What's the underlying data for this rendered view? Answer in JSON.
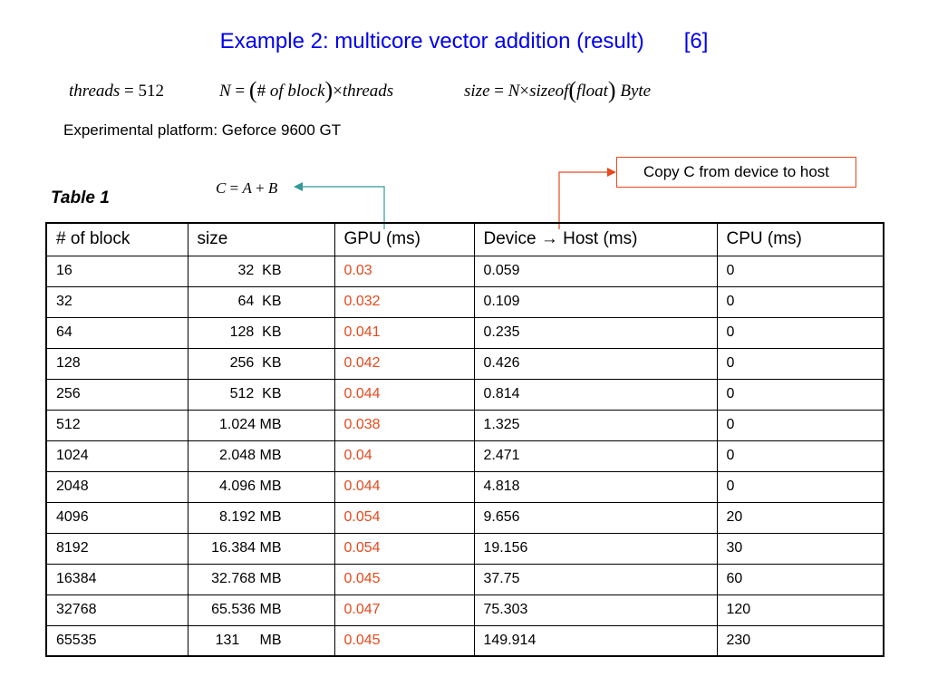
{
  "slide": {
    "title": "Example 2: multicore vector addition (result)",
    "ref": "[6]",
    "formula_threads": {
      "lhs": "threads",
      "eq": " = ",
      "rhs": "512"
    },
    "formula_N": {
      "lhs": "N",
      "eq": " = ",
      "open": "(",
      "hash": "#",
      "of": " of ",
      "block": " block",
      "close": ")",
      "times": "×",
      "threads": "threads"
    },
    "formula_size": {
      "lhs": "size",
      "eq": " = ",
      "N": "N",
      "times": "×",
      "sizeof": "sizeof",
      "open": "(",
      "float": "float",
      "close": ")",
      "byte": " Byte"
    },
    "platform": "Experimental platform: Geforce 9600 GT",
    "cab": {
      "C": "C",
      "eq": " = ",
      "A": "A",
      "plus": " + ",
      "B": "B"
    },
    "callout": "Copy C from device to host",
    "table_label": "Table 1",
    "colors": {
      "title": "#0000ee",
      "gpu_values": "#e8491d",
      "callout_border": "#e8491d",
      "teal_connector": "#339999"
    }
  },
  "table": {
    "headers": [
      "# of block",
      "size",
      "GPU (ms)",
      "Device → Host  (ms)",
      "CPU (ms)"
    ],
    "rows": [
      {
        "blocks": "16",
        "size": "32  KB",
        "gpu": "0.03",
        "d2h": "0.059",
        "cpu": "0"
      },
      {
        "blocks": "32",
        "size": "64  KB",
        "gpu": "0.032",
        "d2h": "0.109",
        "cpu": "0"
      },
      {
        "blocks": "64",
        "size": "128  KB",
        "gpu": "0.041",
        "d2h": "0.235",
        "cpu": "0"
      },
      {
        "blocks": "128",
        "size": "256  KB",
        "gpu": "0.042",
        "d2h": "0.426",
        "cpu": "0"
      },
      {
        "blocks": "256",
        "size": "512  KB",
        "gpu": "0.044",
        "d2h": "0.814",
        "cpu": "0"
      },
      {
        "blocks": "512",
        "size": "1.024 MB",
        "gpu": "0.038",
        "d2h": "1.325",
        "cpu": "0"
      },
      {
        "blocks": "1024",
        "size": "2.048 MB",
        "gpu": "0.04",
        "d2h": "2.471",
        "cpu": "0"
      },
      {
        "blocks": "2048",
        "size": "4.096 MB",
        "gpu": "0.044",
        "d2h": "4.818",
        "cpu": "0"
      },
      {
        "blocks": "4096",
        "size": "8.192 MB",
        "gpu": "0.054",
        "d2h": "9.656",
        "cpu": "20"
      },
      {
        "blocks": "8192",
        "size": "16.384 MB",
        "gpu": "0.054",
        "d2h": "19.156",
        "cpu": "30"
      },
      {
        "blocks": "16384",
        "size": "32.768 MB",
        "gpu": "0.045",
        "d2h": "37.75",
        "cpu": "60"
      },
      {
        "blocks": "32768",
        "size": "65.536 MB",
        "gpu": "0.047",
        "d2h": "75.303",
        "cpu": "120"
      },
      {
        "blocks": "65535",
        "size": "131     MB",
        "gpu": "0.045",
        "d2h": "149.914",
        "cpu": "230"
      }
    ]
  }
}
